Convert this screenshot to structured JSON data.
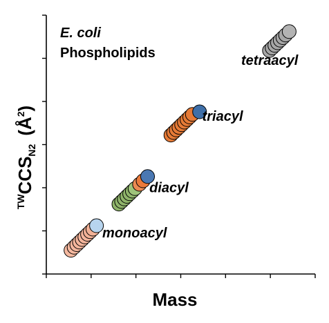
{
  "chart_data": {
    "type": "scatter",
    "title_lines": [
      "E. coli",
      "Phospholipids"
    ],
    "xlabel": "Mass",
    "ylabel": {
      "prefix": "TW",
      "main": "CCS",
      "subscript": "N2",
      "unit_open": "(Å",
      "unit_sup": "2",
      "unit_close": ")"
    },
    "tick_labels_shown": false,
    "grid": false,
    "xlim": [
      0,
      6
    ],
    "ylim": [
      0,
      6
    ],
    "series": [
      {
        "name": "monoacyl",
        "colors": [
          "#f5b9a0",
          "#f5b9a0",
          "#f4b59c",
          "#f4b59c",
          "#f4b59c",
          "#f4b59c",
          "#f4b59c",
          "#f2b196",
          "#f2b196",
          "#b7d4ee"
        ],
        "points": [
          [
            0.55,
            0.55
          ],
          [
            0.62,
            0.62
          ],
          [
            0.68,
            0.68
          ],
          [
            0.74,
            0.74
          ],
          [
            0.8,
            0.8
          ],
          [
            0.86,
            0.86
          ],
          [
            0.92,
            0.92
          ],
          [
            0.98,
            0.98
          ],
          [
            1.04,
            1.04
          ],
          [
            1.12,
            1.12
          ]
        ]
      },
      {
        "name": "diacyl",
        "colors": [
          "#8fb46a",
          "#8fb46a",
          "#8fb46a",
          "#8fb46a",
          "#8fb46a",
          "#8fb46a",
          "#9ec47a",
          "#eb8a52",
          "#eb7a3b",
          "#4a78b3"
        ],
        "points": [
          [
            1.62,
            1.62
          ],
          [
            1.68,
            1.68
          ],
          [
            1.74,
            1.74
          ],
          [
            1.8,
            1.8
          ],
          [
            1.86,
            1.86
          ],
          [
            1.92,
            1.92
          ],
          [
            1.98,
            1.98
          ],
          [
            2.08,
            2.08
          ],
          [
            2.16,
            2.16
          ],
          [
            2.26,
            2.26
          ]
        ]
      },
      {
        "name": "triacyl",
        "colors": [
          "#e67a36",
          "#e67a36",
          "#e67a36",
          "#e67a36",
          "#e67a36",
          "#e67a36",
          "#e67a36",
          "#e67a36",
          "#e67a36",
          "#3f6fa8"
        ],
        "points": [
          [
            2.78,
            3.22
          ],
          [
            2.84,
            3.28
          ],
          [
            2.9,
            3.34
          ],
          [
            2.96,
            3.4
          ],
          [
            3.02,
            3.46
          ],
          [
            3.08,
            3.52
          ],
          [
            3.14,
            3.58
          ],
          [
            3.2,
            3.64
          ],
          [
            3.26,
            3.7
          ],
          [
            3.42,
            3.76
          ]
        ]
      },
      {
        "name": "tetraacyl",
        "colors": [
          "#a6a6a6",
          "#a6a6a6",
          "#a6a6a6",
          "#a6a6a6",
          "#a6a6a6",
          "#a6a6a6",
          "#a6a6a6",
          "#b3b3b3"
        ],
        "points": [
          [
            4.98,
            5.18
          ],
          [
            5.04,
            5.24
          ],
          [
            5.1,
            5.3
          ],
          [
            5.16,
            5.36
          ],
          [
            5.22,
            5.42
          ],
          [
            5.28,
            5.48
          ],
          [
            5.34,
            5.54
          ],
          [
            5.42,
            5.62
          ]
        ]
      }
    ],
    "annotations": [
      {
        "text": "tetraacyl",
        "x": 4.35,
        "y": 4.85
      },
      {
        "text": "triacyl",
        "x": 3.48,
        "y": 3.55
      },
      {
        "text": "diacyl",
        "x": 2.3,
        "y": 1.9
      },
      {
        "text": "monoacyl",
        "x": 1.25,
        "y": 0.85
      }
    ]
  }
}
